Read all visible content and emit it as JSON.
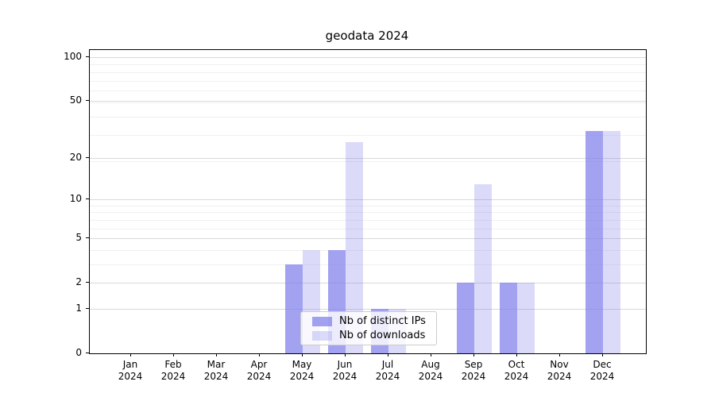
{
  "title": "geodata 2024",
  "legend": {
    "items": [
      {
        "label": "Nb of distinct IPs",
        "color": "rgba(126,126,235,0.72)"
      },
      {
        "label": "Nb of downloads",
        "color": "rgba(126,126,235,0.28)"
      }
    ]
  },
  "chart_data": {
    "type": "bar",
    "title": "geodata 2024",
    "categories": [
      "Jan 2024",
      "Feb 2024",
      "Mar 2024",
      "Apr 2024",
      "May 2024",
      "Jun 2024",
      "Jul 2024",
      "Aug 2024",
      "Sep 2024",
      "Oct 2024",
      "Nov 2024",
      "Dec 2024"
    ],
    "series": [
      {
        "name": "Nb of distinct IPs",
        "color": "rgba(126,126,235,0.72)",
        "values": [
          0,
          0,
          0,
          0,
          3,
          4,
          1,
          0,
          2,
          2,
          0,
          31
        ]
      },
      {
        "name": "Nb of downloads",
        "color": "rgba(126,126,235,0.28)",
        "values": [
          0,
          0,
          0,
          0,
          4,
          26,
          1,
          0,
          13,
          2,
          0,
          31
        ]
      }
    ],
    "xlabel": "",
    "ylabel": "",
    "yscale": "log1p",
    "ylim": [
      0,
      112
    ],
    "yticks": [
      0,
      1,
      2,
      5,
      10,
      20,
      50,
      100
    ],
    "minor_gridlines": [
      3,
      4,
      6,
      7,
      8,
      9,
      19,
      29,
      39,
      49,
      59,
      69,
      79,
      89
    ],
    "grid": true,
    "legend_position": "lower center"
  }
}
